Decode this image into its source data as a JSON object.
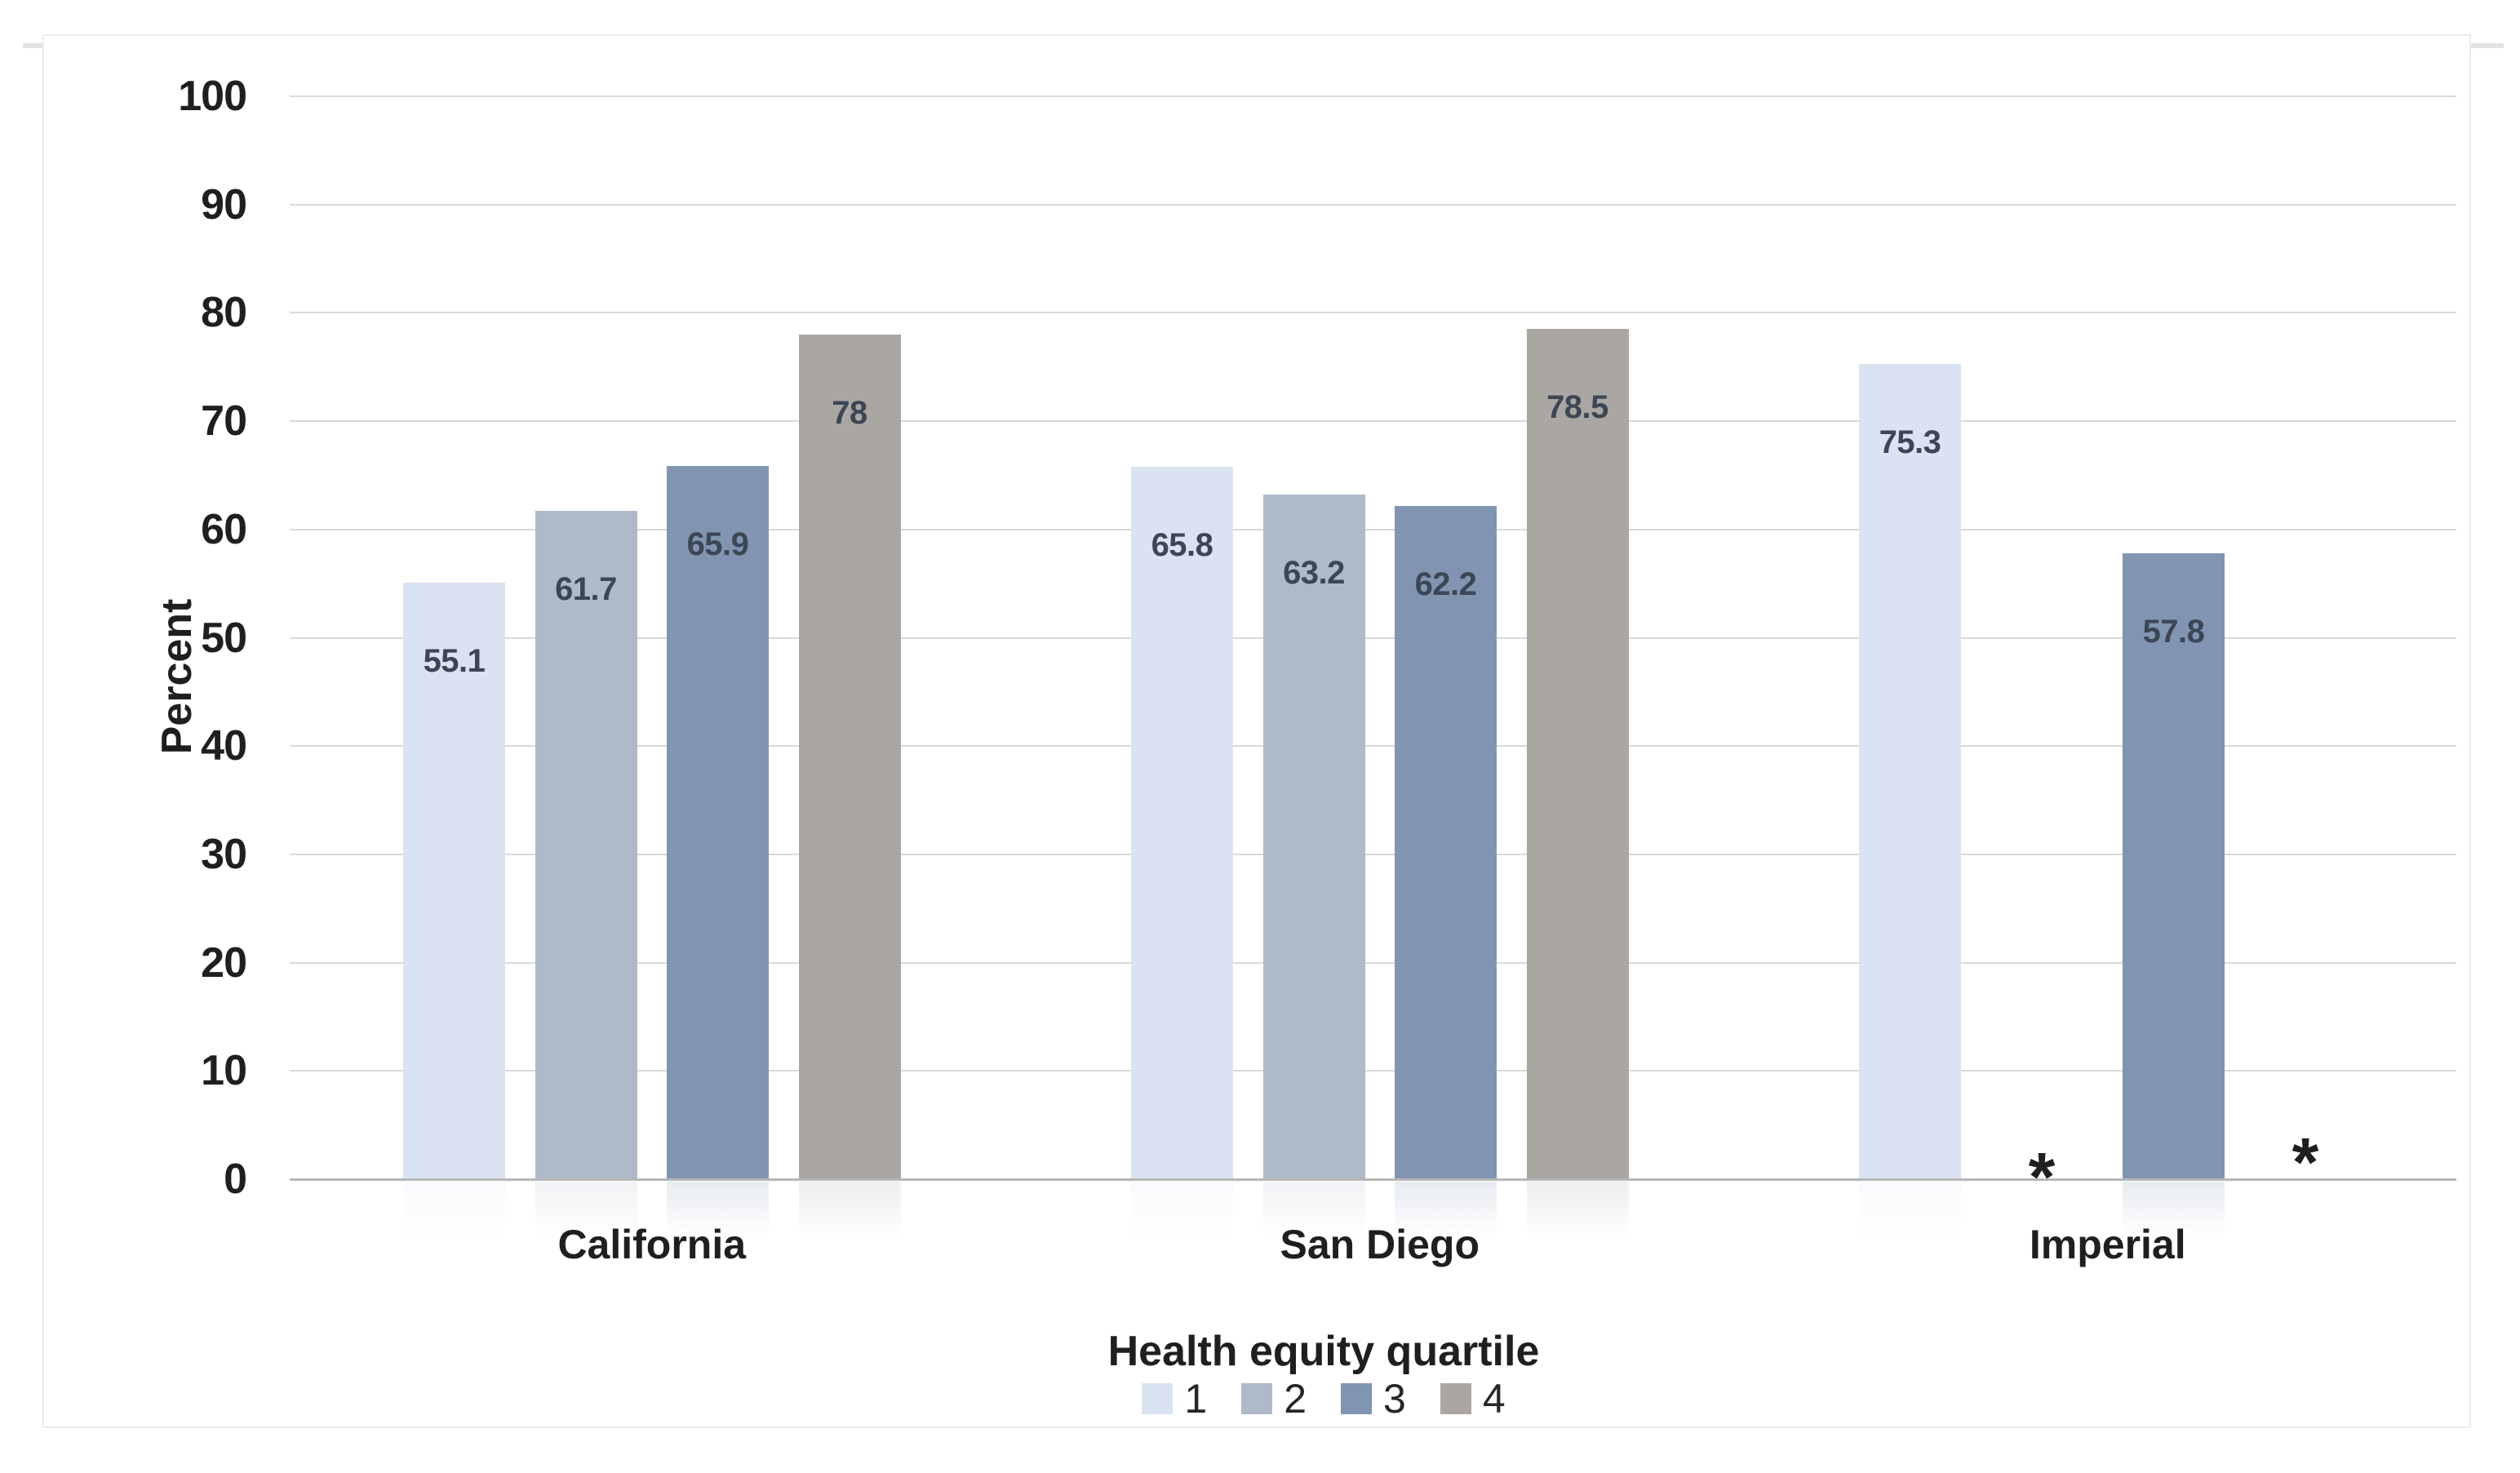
{
  "chart_data": {
    "type": "bar",
    "title": "",
    "xlabel": "",
    "ylabel": "Percent",
    "categories": [
      "California",
      "San Diego",
      "Imperial"
    ],
    "series": [
      {
        "name": "1",
        "color": "#dae3f1",
        "values": [
          55.1,
          65.8,
          75.3
        ]
      },
      {
        "name": "2",
        "color": "#aebac9",
        "values": [
          61.7,
          63.2,
          null
        ]
      },
      {
        "name": "3",
        "color": "#8195b2",
        "values": [
          65.9,
          62.2,
          57.8
        ]
      },
      {
        "name": "4",
        "color": "#aaa7a3",
        "values": [
          78,
          78.5,
          null
        ]
      }
    ],
    "suppressed_marker": "*",
    "yticks": [
      0,
      10,
      20,
      30,
      40,
      50,
      60,
      70,
      80,
      90,
      100
    ],
    "ylim": [
      0,
      100
    ],
    "ytick_step": 10,
    "grid": true,
    "legend_title": "Health equity quartile",
    "legend_entries": [
      "1",
      "2",
      "3",
      "4"
    ],
    "legend_position": "bottom",
    "colors": {
      "gridline": "#d9d9d9",
      "axis_line": "#b7b7b7",
      "data_label": "#3c4655",
      "text": "#1f1f1f"
    }
  }
}
